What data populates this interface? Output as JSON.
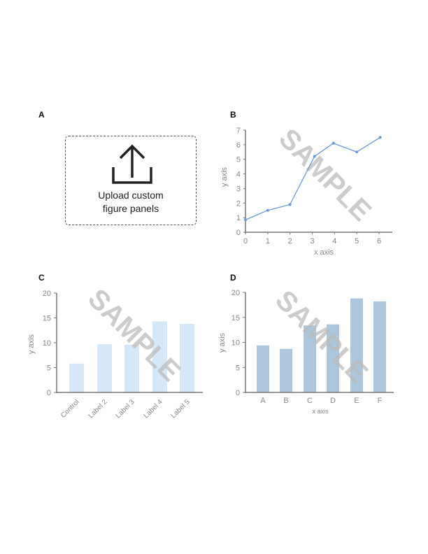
{
  "panels": {
    "a": {
      "label": "A",
      "upload_line1": "Upload custom",
      "upload_line2": "figure panels",
      "icon": "upload-icon"
    },
    "b": {
      "label": "B"
    },
    "c": {
      "label": "C"
    },
    "d": {
      "label": "D"
    }
  },
  "watermark": "SAMPLE",
  "colors": {
    "line": "#6b9bd1",
    "bar_light": "#d6e8f7",
    "bar_medium": "#adc6dc",
    "axis": "#777777",
    "watermark": "#bbbbbb"
  },
  "chart_data": [
    {
      "panel": "B",
      "type": "line",
      "title": "",
      "xlabel": "x axis",
      "ylabel": "y axis",
      "x": [
        0,
        1,
        2,
        3.1,
        3.95,
        5,
        6.05
      ],
      "y": [
        0.85,
        1.5,
        1.9,
        5.2,
        6.1,
        5.5,
        6.5
      ],
      "xticks": [
        "0",
        "1",
        "2",
        "3",
        "4",
        "5",
        "6"
      ],
      "yticks": [
        "0",
        "1",
        "2",
        "3",
        "4",
        "5",
        "6",
        "7"
      ],
      "xlim": [
        0,
        6.6
      ],
      "ylim": [
        0,
        7
      ],
      "grid": false
    },
    {
      "panel": "C",
      "type": "bar",
      "title": "",
      "xlabel": "",
      "ylabel": "y axis",
      "categories": [
        "Control",
        "Label 2",
        "Label 3",
        "Label 4",
        "Label 5"
      ],
      "values": [
        5.8,
        9.7,
        9.6,
        14.3,
        13.8
      ],
      "yticks": [
        "0",
        "5",
        "10",
        "15",
        "20"
      ],
      "ylim": [
        0,
        20
      ],
      "grid": false
    },
    {
      "panel": "D",
      "type": "bar",
      "title": "",
      "xlabel": "x axis",
      "ylabel": "y axis",
      "categories": [
        "A",
        "B",
        "C",
        "D",
        "E",
        "F"
      ],
      "values": [
        9.4,
        8.7,
        13.4,
        13.6,
        18.8,
        18.2
      ],
      "yticks": [
        "0",
        "5",
        "10",
        "15",
        "20"
      ],
      "ylim": [
        0,
        20
      ],
      "grid": false
    }
  ]
}
